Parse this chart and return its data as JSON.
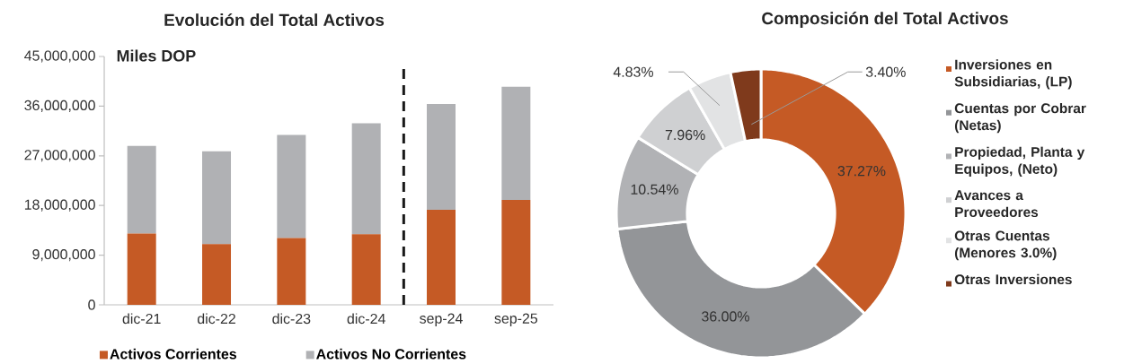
{
  "chart_data": [
    {
      "type": "bar",
      "title": "Evolución del Total Activos",
      "stacked": true,
      "categories": [
        "dic-21",
        "dic-22",
        "dic-23",
        "dic-24",
        "sep-24",
        "sep-25"
      ],
      "series": [
        {
          "name": "Activos Corrientes",
          "color": "#c55a25",
          "values": [
            12900000,
            11000000,
            12100000,
            12800000,
            17200000,
            19000000
          ]
        },
        {
          "name": "Activos No Corrientes",
          "color": "#b0b1b4",
          "values": [
            15900000,
            16800000,
            18700000,
            20100000,
            19200000,
            20500000
          ]
        }
      ],
      "ylim": [
        0,
        45000000
      ],
      "yticks": [
        {
          "value": 0,
          "label": "0"
        },
        {
          "value": 9000000,
          "label": "9,000,000"
        },
        {
          "value": 18000000,
          "label": "18,000,000"
        },
        {
          "value": 27000000,
          "label": "27,000,000"
        },
        {
          "value": 36000000,
          "label": "36,000,000"
        },
        {
          "value": 45000000,
          "label": "45,000,000"
        }
      ],
      "annotations": [
        "Miles DOP"
      ],
      "legend": "bottom"
    },
    {
      "type": "donut",
      "title": "Composición del Total Activos",
      "categories": [
        "Inversiones en Subsidiarias, (LP)",
        "Cuentas por Cobrar (Netas)",
        "Propiedad, Planta y Equipos, (Neto)",
        "Avances a Proveedores",
        "Otras Cuentas (Menores 3.0%)",
        "Otras Inversiones"
      ],
      "values": [
        37.27,
        36.0,
        10.54,
        7.96,
        4.83,
        3.4
      ],
      "colors": [
        "#c55a25",
        "#939598",
        "#b1b2b5",
        "#cfd0d2",
        "#e2e3e4",
        "#7f3a1c"
      ],
      "value_labels": [
        "37.27%",
        "36.00%",
        "10.54%",
        "7.96%",
        "4.83%",
        "3.40%"
      ],
      "legend": "right"
    }
  ]
}
